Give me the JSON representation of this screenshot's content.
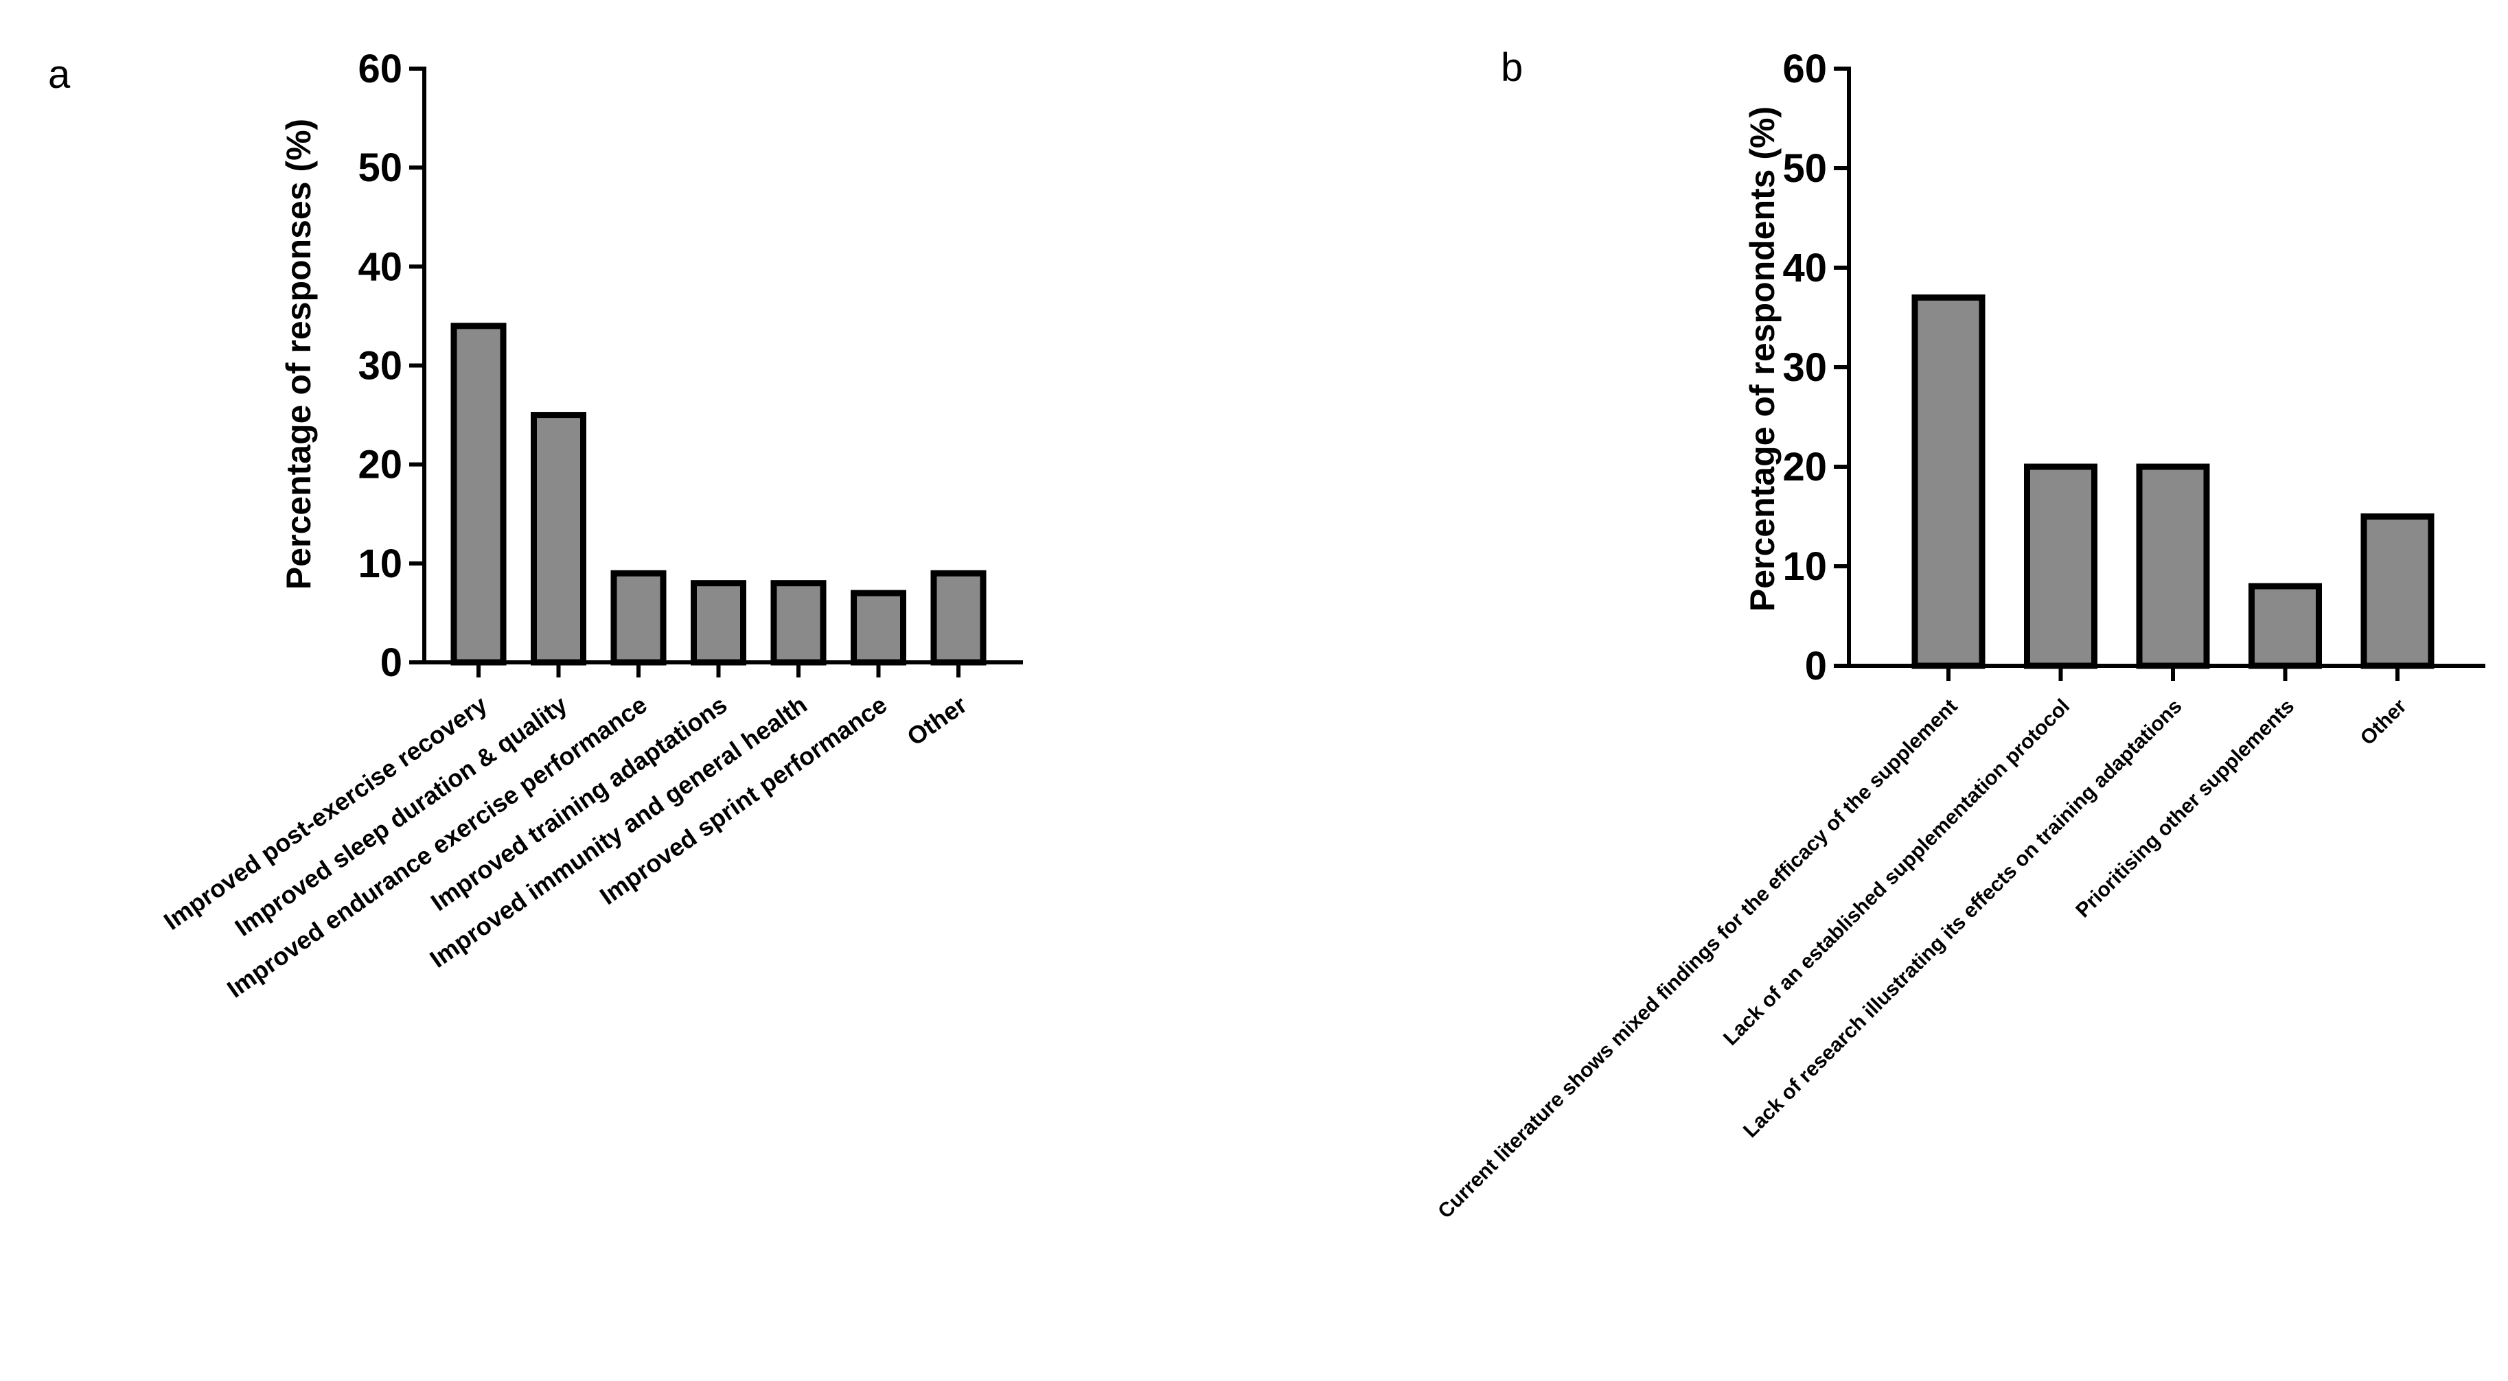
{
  "colors": {
    "bar_fill": "#8a8a8a",
    "bar_stroke": "#000000",
    "axis": "#000000"
  },
  "chart_data": [
    {
      "type": "bar",
      "panel_label": "a",
      "title": "",
      "xlabel": "",
      "ylabel": "Percentage of responses (%)",
      "ylim": [
        0,
        60
      ],
      "yticks": [
        0,
        10,
        20,
        30,
        40,
        50,
        60
      ],
      "grid": false,
      "categories": [
        "Improved post-exercise recovery",
        "Improved sleep duration & quality",
        "Improved endurance exercise performance",
        "Improved training adaptations",
        "Improved immunity and general health",
        "Improved sprint performance",
        "Other"
      ],
      "values": [
        34,
        25,
        9,
        8,
        8,
        7,
        9
      ]
    },
    {
      "type": "bar",
      "panel_label": "b",
      "title": "",
      "xlabel": "",
      "ylabel": "Percentage of respondents (%)",
      "ylim": [
        0,
        60
      ],
      "yticks": [
        0,
        10,
        20,
        30,
        40,
        50,
        60
      ],
      "grid": false,
      "categories": [
        "Current literature shows mixed findings for the efficacy of the supplement",
        "Lack of an established supplementation protocol",
        "Lack of research illustrating its effects on training adaptations",
        "Prioritising other supplements",
        "Other"
      ],
      "values": [
        37,
        20,
        20,
        8,
        15
      ]
    }
  ]
}
